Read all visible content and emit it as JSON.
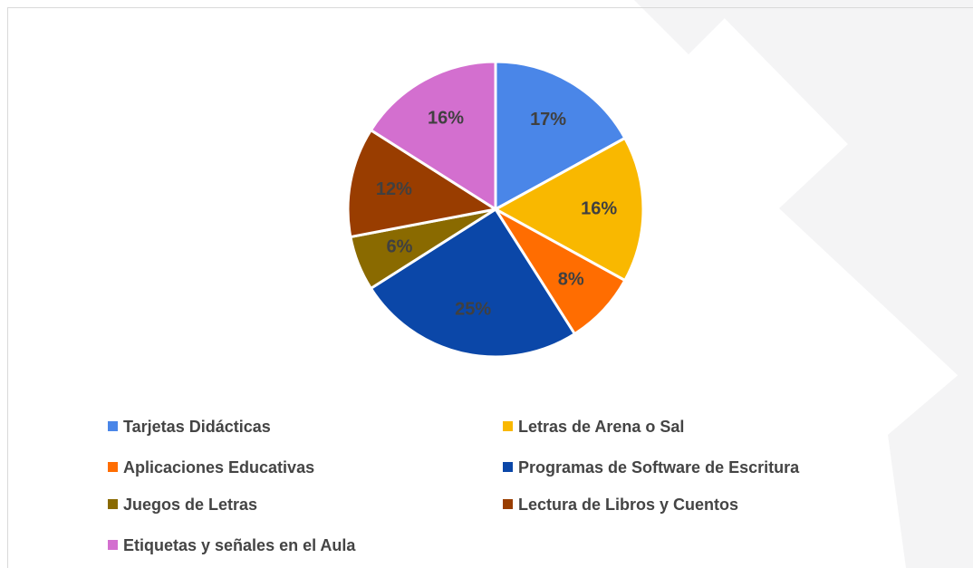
{
  "chart_data": {
    "type": "pie",
    "categories": [
      "Tarjetas Didácticas",
      "Letras de Arena o Sal",
      "Aplicaciones Educativas",
      "Programas de Software de Escritura",
      "Juegos de Letras",
      "Lectura de Libros y Cuentos",
      "Etiquetas y señales en el Aula"
    ],
    "values": [
      17,
      16,
      8,
      25,
      6,
      12,
      16
    ],
    "value_labels": [
      "17%",
      "16%",
      "8%",
      "25%",
      "6%",
      "12%",
      "16%"
    ],
    "colors": [
      "#4a86e8",
      "#f9b800",
      "#ff6d01",
      "#0b47a8",
      "#8a6a00",
      "#993d00",
      "#d36fcf"
    ],
    "legend": "bottom"
  }
}
